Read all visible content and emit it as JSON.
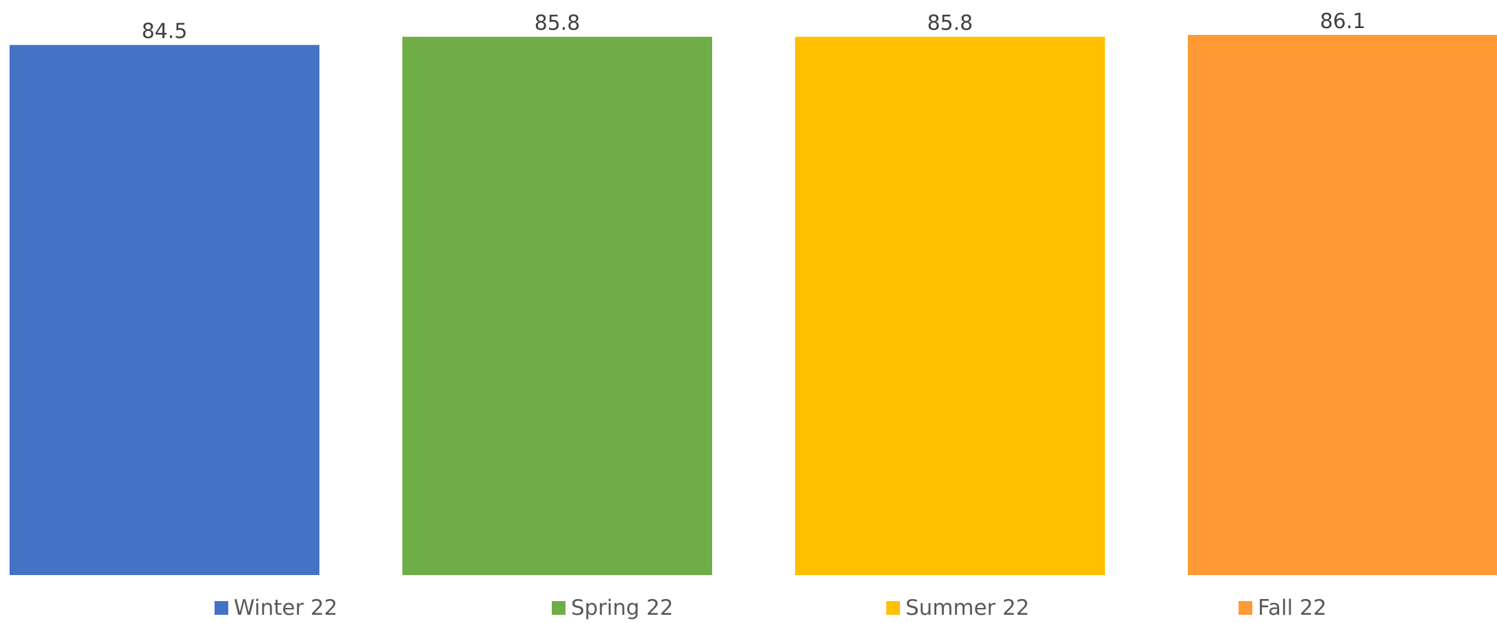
{
  "chart_data": {
    "type": "bar",
    "title": "",
    "xlabel": "",
    "ylabel": "",
    "categories": [
      "Winter 22",
      "Spring 22",
      "Summer 22",
      "Fall 22"
    ],
    "values": [
      84.5,
      85.8,
      85.8,
      86.1
    ],
    "data_labels": [
      "84.5",
      "85.8",
      "85.8",
      "86.1"
    ],
    "colors": [
      "#4472C4",
      "#70AD47",
      "#FFC000",
      "#FF9933"
    ],
    "ylim": [
      0,
      86.1
    ],
    "grid": false,
    "legend": {
      "position": "bottom",
      "entries": [
        "Winter 22",
        "Spring 22",
        "Summer 22",
        "Fall 22"
      ]
    }
  }
}
